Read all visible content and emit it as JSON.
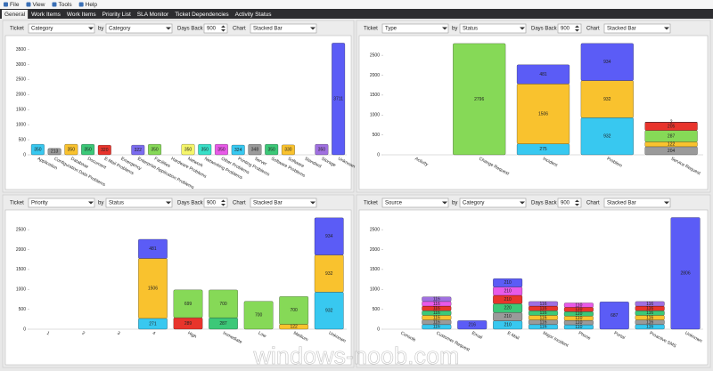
{
  "menu": [
    "File",
    "View",
    "Tools",
    "Help"
  ],
  "tabs": [
    "General",
    "Work Items",
    "Work Items",
    "Priority List",
    "SLA Monitor",
    "Ticket Dependencies",
    "Activity Status"
  ],
  "control_labels": {
    "ticket": "Ticket",
    "by": "by",
    "days_back": "Days Back",
    "chart": "Chart"
  },
  "panels": [
    {
      "ticket": "Category",
      "by": "Category",
      "days_back": 900,
      "chart": "Stacked Bar"
    },
    {
      "ticket": "Type",
      "by": "Status",
      "days_back": 900,
      "chart": "Stacked Bar"
    },
    {
      "ticket": "Priority",
      "by": "Status",
      "days_back": 900,
      "chart": "Stacked Bar"
    },
    {
      "ticket": "Source",
      "by": "Category",
      "days_back": 900,
      "chart": "Stacked Bar"
    }
  ],
  "watermark": "windows-noob.com",
  "chart_data": [
    {
      "type": "bar",
      "categories": [
        "Application",
        "Configuration Data Problems",
        "Database",
        "Document",
        "E-Mail Problems",
        "Emergency",
        "Enterprise Application Problems",
        "Facilities",
        "Hardware Problems",
        "Network",
        "Networking Problems",
        "Other Problems",
        "Printing Problems",
        "Server",
        "Software Problems",
        "Software",
        "Standard",
        "Storage",
        "Unknown"
      ],
      "values": [
        350,
        213,
        350,
        350,
        320,
        null,
        322,
        350,
        null,
        350,
        350,
        350,
        324,
        348,
        350,
        330,
        null,
        350,
        3711
      ],
      "colors": [
        "#38c8f0",
        "#9a9a9a",
        "#f9c22e",
        "#3cc878",
        "#e8342c",
        null,
        "#7b6cf0",
        "#86d957",
        null,
        "#f5f56a",
        "#38e0c8",
        "#e85ae8",
        "#38c8f0",
        "#9a9a9a",
        "#3cc878",
        "#f9c22e",
        null,
        "#a070e0",
        "#5b5cf6"
      ],
      "ylim": [
        0,
        3900
      ],
      "yticks": [
        0,
        500,
        1000,
        1500,
        2000,
        2500,
        3000,
        3500
      ]
    },
    {
      "type": "stacked_bar",
      "categories": [
        "Activity",
        "Change Request",
        "Incident",
        "Problem",
        "Service Request"
      ],
      "series": [
        {
          "color": "#38c8f0",
          "values": [
            null,
            null,
            275,
            932,
            null
          ]
        },
        {
          "color": "#9a9a9a",
          "values": [
            null,
            null,
            null,
            null,
            204
          ]
        },
        {
          "color": "#f9c22e",
          "values": [
            null,
            null,
            1506,
            932,
            122
          ]
        },
        {
          "color": "#86d957",
          "values": [
            null,
            2796,
            null,
            null,
            287
          ]
        },
        {
          "color": "#e8342c",
          "values": [
            null,
            null,
            null,
            null,
            205
          ]
        },
        {
          "color": "#5b5cf6",
          "values": [
            null,
            null,
            481,
            934,
            2
          ]
        }
      ],
      "ylim": [
        0,
        2950
      ],
      "yticks": [
        0,
        500,
        1000,
        1500,
        2000,
        2500
      ]
    },
    {
      "type": "stacked_bar",
      "categories": [
        "1",
        "2",
        "3",
        "4",
        "High",
        "Immediate",
        "Low",
        "Medium",
        "Unknown"
      ],
      "series": [
        {
          "color": "#38c8f0",
          "values": [
            null,
            null,
            null,
            271,
            null,
            null,
            null,
            null,
            932
          ]
        },
        {
          "color": "#e8342c",
          "values": [
            null,
            null,
            null,
            null,
            289,
            null,
            null,
            null,
            null
          ]
        },
        {
          "color": "#3cc878",
          "values": [
            null,
            null,
            null,
            null,
            null,
            287,
            null,
            null,
            null
          ]
        },
        {
          "color": "#f9c22e",
          "values": [
            null,
            null,
            null,
            1506,
            null,
            null,
            null,
            122,
            932
          ]
        },
        {
          "color": "#86d957",
          "values": [
            null,
            null,
            null,
            null,
            699,
            700,
            700,
            700,
            null
          ]
        },
        {
          "color": "#5b5cf6",
          "values": [
            null,
            null,
            null,
            481,
            null,
            null,
            null,
            null,
            934
          ]
        }
      ],
      "ylim": [
        0,
        2950
      ],
      "yticks": [
        0,
        500,
        1000,
        1500,
        2000,
        2500
      ]
    },
    {
      "type": "stacked_bar",
      "categories": [
        "Console",
        "Customer Request",
        "Email",
        "E-Mail",
        "Major Incident",
        "Phone",
        "Portal",
        "Proactive SMS",
        "Unknown"
      ],
      "series": [
        {
          "color": "#38c8f0",
          "values": [
            null,
            116,
            null,
            210,
            116,
            110,
            null,
            116,
            null
          ]
        },
        {
          "color": "#9a9a9a",
          "values": [
            null,
            116,
            null,
            210,
            116,
            110,
            null,
            116,
            null
          ]
        },
        {
          "color": "#f9c22e",
          "values": [
            null,
            116,
            null,
            null,
            116,
            110,
            null,
            116,
            null
          ]
        },
        {
          "color": "#3cc878",
          "values": [
            null,
            116,
            null,
            220,
            116,
            110,
            null,
            116,
            null
          ]
        },
        {
          "color": "#e8342c",
          "values": [
            null,
            116,
            null,
            210,
            116,
            110,
            null,
            116,
            null
          ]
        },
        {
          "color": "#e85ae8",
          "values": [
            null,
            116,
            null,
            210,
            null,
            110,
            null,
            null,
            null
          ]
        },
        {
          "color": "#a070e0",
          "values": [
            null,
            116,
            null,
            null,
            116,
            null,
            null,
            116,
            null
          ]
        },
        {
          "color": "#5b5cf6",
          "values": [
            null,
            null,
            216,
            210,
            null,
            null,
            687,
            null,
            2806
          ]
        }
      ],
      "ylim": [
        0,
        2950
      ],
      "yticks": [
        0,
        500,
        1000,
        1500,
        2000,
        2500
      ]
    }
  ]
}
